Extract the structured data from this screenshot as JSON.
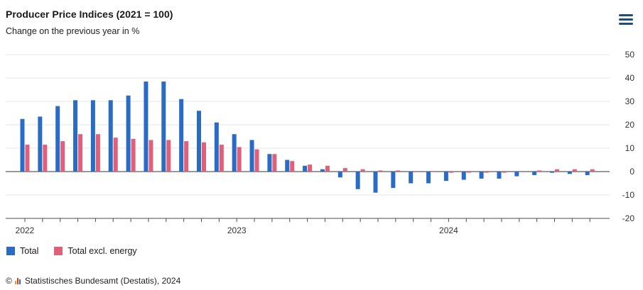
{
  "title": "Producer Price Indices (2021 = 100)",
  "subtitle": "Change on the previous year in %",
  "credits": {
    "copyright": "©",
    "text": "Statistisches Bundesamt (Destatis), 2024"
  },
  "menu_icon": "hamburger-menu-icon",
  "colors": {
    "total": "#2a6cc5",
    "excl_energy": "#e0607a",
    "grid": "#e6e6e6",
    "axis": "#4d4d4d"
  },
  "chart_data": {
    "type": "bar",
    "title": "Producer Price Indices (2021 = 100)",
    "subtitle": "Change on the previous year in %",
    "categories": [
      "2022-01",
      "2022-02",
      "2022-03",
      "2022-04",
      "2022-05",
      "2022-06",
      "2022-07",
      "2022-08",
      "2022-09",
      "2022-10",
      "2022-11",
      "2022-12",
      "2023-01",
      "2023-02",
      "2023-03",
      "2023-04",
      "2023-05",
      "2023-06",
      "2023-07",
      "2023-08",
      "2023-09",
      "2023-10",
      "2023-11",
      "2023-12",
      "2024-01",
      "2024-02",
      "2024-03",
      "2024-04",
      "2024-05",
      "2024-06",
      "2024-07",
      "2024-08",
      "2024-09"
    ],
    "x_tick_labels": [
      {
        "category": "2022-01",
        "label": "2022"
      },
      {
        "category": "2023-01",
        "label": "2023"
      },
      {
        "category": "2024-01",
        "label": "2024"
      }
    ],
    "series": [
      {
        "name": "Total",
        "color": "#2a6cc5",
        "values": [
          22.5,
          23.5,
          28.0,
          30.5,
          30.5,
          30.5,
          32.5,
          38.5,
          38.5,
          31.0,
          26.0,
          21.0,
          16.0,
          13.5,
          7.5,
          5.0,
          2.5,
          1.0,
          -2.5,
          -7.5,
          -9.0,
          -7.0,
          -5.0,
          -5.0,
          -4.0,
          -3.5,
          -3.0,
          -3.0,
          -2.0,
          -1.5,
          -0.5,
          -1.0,
          -1.5
        ]
      },
      {
        "name": "Total excl. energy",
        "color": "#e0607a",
        "values": [
          11.5,
          11.5,
          13.0,
          16.0,
          16.0,
          14.5,
          14.0,
          13.5,
          13.5,
          13.0,
          12.5,
          11.5,
          10.5,
          9.5,
          7.5,
          4.5,
          3.0,
          2.5,
          1.5,
          1.0,
          0.5,
          0.5,
          0.0,
          0.0,
          -0.5,
          -0.5,
          -0.5,
          -0.5,
          0.0,
          0.5,
          1.0,
          1.0,
          1.0
        ]
      }
    ],
    "y_axis": {
      "position": "right",
      "ticks": [
        50,
        40,
        30,
        20,
        10,
        0,
        -10,
        -20
      ],
      "ylim": [
        -20,
        50
      ]
    },
    "grid": true,
    "legend": {
      "placement": "bottom-left"
    }
  }
}
